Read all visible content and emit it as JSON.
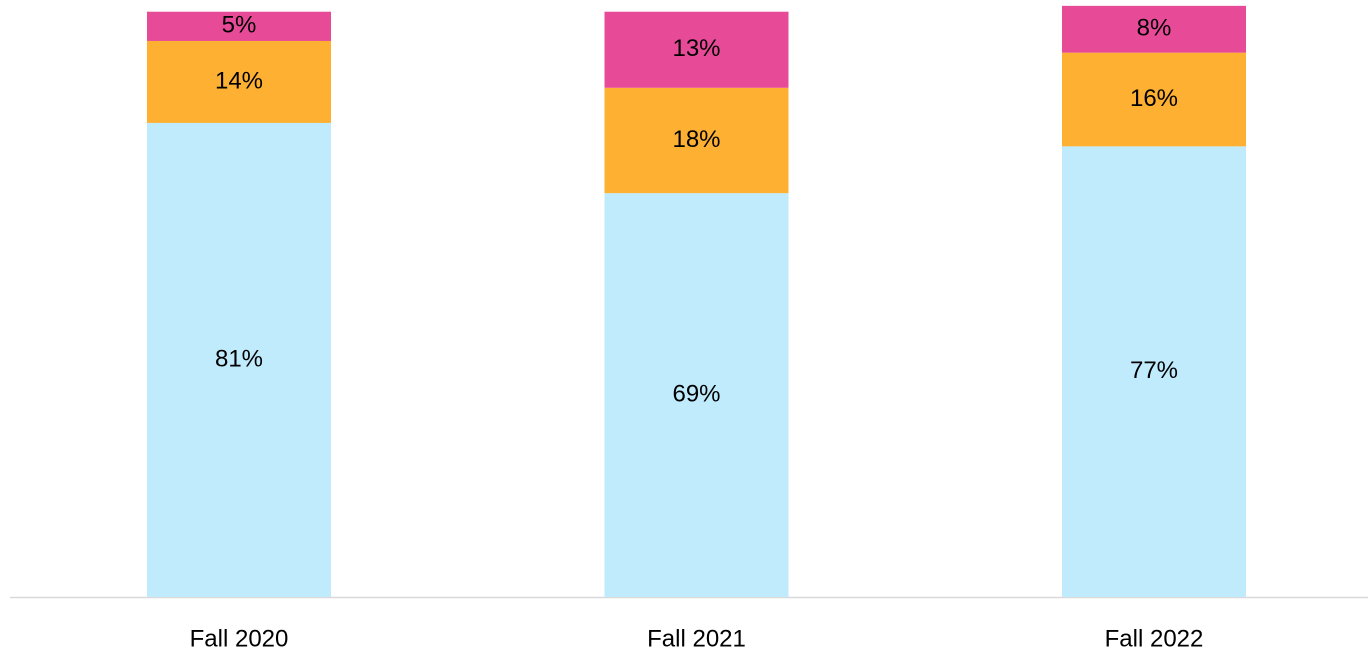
{
  "chart_data": {
    "type": "stacked_bar",
    "categories": [
      "Fall 2020",
      "Fall 2021",
      "Fall 2022"
    ],
    "series": [
      {
        "color": "#bfebfc",
        "values": [
          81,
          69,
          77
        ],
        "value_labels": [
          "81%",
          "69%",
          "77%"
        ]
      },
      {
        "color": "#fdb032",
        "values": [
          14,
          18,
          16
        ],
        "value_labels": [
          "14%",
          "18%",
          "16%"
        ]
      },
      {
        "color": "#e74b98",
        "values": [
          5,
          13,
          8
        ],
        "value_labels": [
          "5%",
          "13%",
          "8%"
        ]
      }
    ],
    "ylim": [
      0,
      102
    ]
  }
}
